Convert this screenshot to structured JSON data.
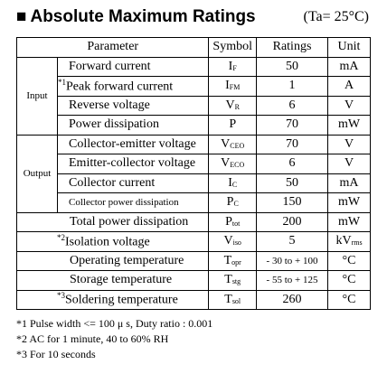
{
  "header": {
    "marker": "■",
    "title": "Absolute Maximum Ratings",
    "condition": "(Ta= 25°C)"
  },
  "table": {
    "columns": [
      "Parameter",
      "Symbol",
      "Ratings",
      "Unit"
    ],
    "sections": [
      {
        "group": "Input",
        "rows": [
          {
            "parameter": "Forward current",
            "symbol": "I",
            "symbol_sub": "F",
            "rating": "50",
            "unit": "mA"
          },
          {
            "note": "*1",
            "parameter": "Peak forward current",
            "symbol": "I",
            "symbol_sub": "FM",
            "rating": "1",
            "unit": "A"
          },
          {
            "parameter": "Reverse voltage",
            "symbol": "V",
            "symbol_sub": "R",
            "rating": "6",
            "unit": "V"
          },
          {
            "parameter": "Power dissipation",
            "symbol": "P",
            "rating": "70",
            "unit": "mW"
          }
        ]
      },
      {
        "group": "Output",
        "rows": [
          {
            "parameter": "Collector-emitter voltage",
            "symbol": "V",
            "symbol_sub": "CEO",
            "rating": "70",
            "unit": "V"
          },
          {
            "parameter": "Emitter-collector voltage",
            "symbol": "V",
            "symbol_sub": "ECO",
            "rating": "6",
            "unit": "V"
          },
          {
            "parameter": "Collector current",
            "symbol": "I",
            "symbol_sub": "C",
            "rating": "50",
            "unit": "mA"
          },
          {
            "parameter": "Collector power dissipation",
            "symbol": "P",
            "symbol_sub": "C",
            "rating": "150",
            "unit": "mW"
          }
        ]
      },
      {
        "rows": [
          {
            "parameter": "Total power dissipation",
            "symbol": "P",
            "symbol_sub": "tot",
            "rating": "200",
            "unit": "mW"
          },
          {
            "note": "*2",
            "parameter": "Isolation voltage",
            "symbol": "V",
            "symbol_sub": "iso",
            "rating": "5",
            "unit": "kV",
            "unit_sub": "rms"
          },
          {
            "parameter": "Operating temperature",
            "symbol": "T",
            "symbol_sub": "opr",
            "rating": "- 30 to + 100",
            "unit": "°C"
          },
          {
            "parameter": "Storage temperature",
            "symbol": "T",
            "symbol_sub": "stg",
            "rating": "- 55 to + 125",
            "unit": "°C"
          },
          {
            "note": "*3",
            "parameter": "Soldering temperature",
            "symbol": "T",
            "symbol_sub": "sol",
            "rating": "260",
            "unit": "°C"
          }
        ]
      }
    ]
  },
  "footnotes": [
    "*1 Pulse width <= 100 μ s, Duty ratio : 0.001",
    "*2 AC for 1 minute, 40 to 60% RH",
    "*3 For 10 seconds"
  ]
}
